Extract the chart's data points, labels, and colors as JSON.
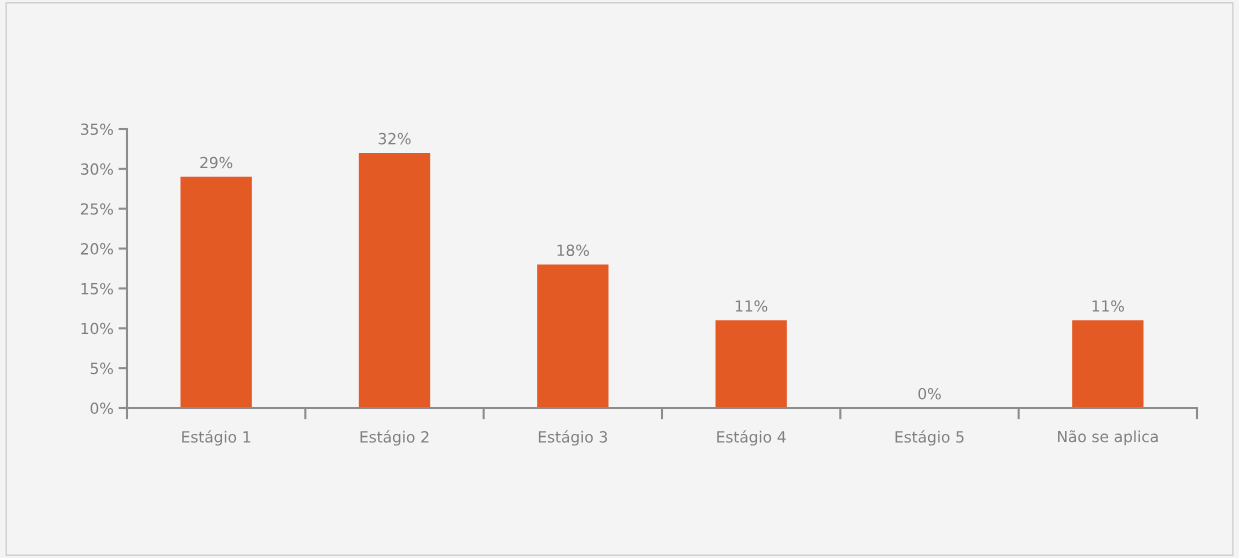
{
  "chart_data": {
    "type": "bar",
    "categories": [
      "Estágio 1",
      "Estágio 2",
      "Estágio 3",
      "Estágio 4",
      "Estágio 5",
      "Não se aplica"
    ],
    "values": [
      29,
      32,
      18,
      11,
      0,
      11
    ],
    "color": "#e35a25",
    "value_labels": [
      "29%",
      "32%",
      "18%",
      "11%",
      "0%",
      "11%"
    ],
    "ylim": [
      0,
      35
    ],
    "yticks": [
      {
        "value": 0,
        "label": "0%"
      },
      {
        "value": 5,
        "label": "5%"
      },
      {
        "value": 10,
        "label": "10%"
      },
      {
        "value": 15,
        "label": "15%"
      },
      {
        "value": 20,
        "label": "20%"
      },
      {
        "value": 25,
        "label": "25%"
      },
      {
        "value": 30,
        "label": "30%"
      },
      {
        "value": 35,
        "label": "35%"
      }
    ],
    "grid": false,
    "legend": false
  }
}
